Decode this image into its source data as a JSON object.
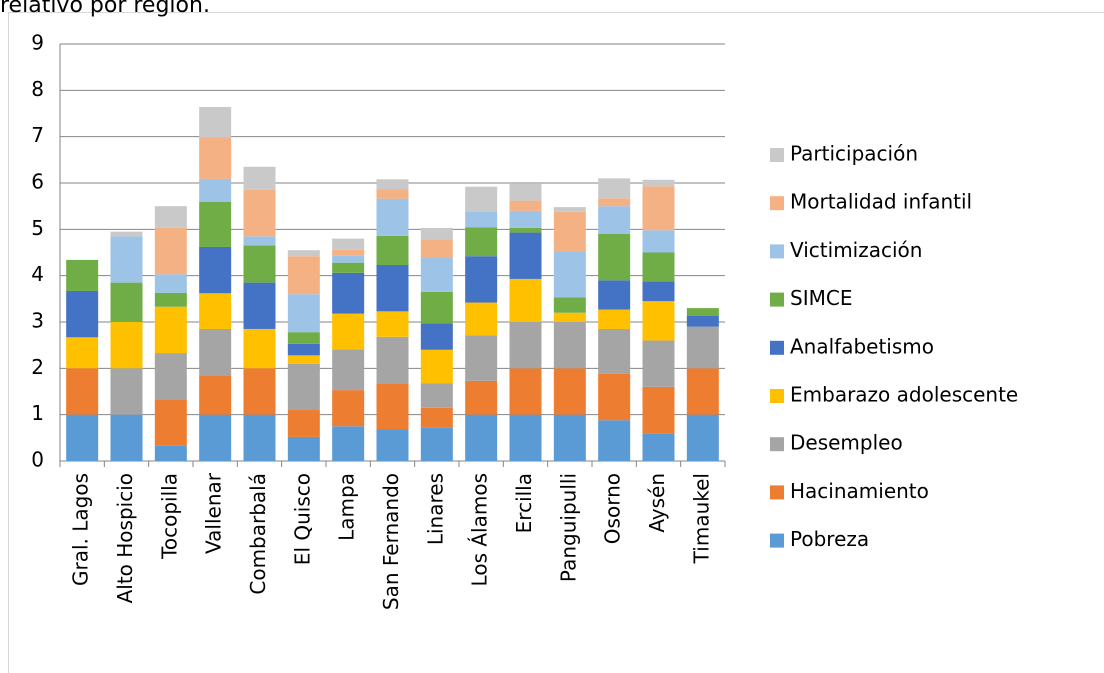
{
  "chart_data": {
    "type": "stacked_bar",
    "title": "relativo por región.",
    "categories": [
      "Gral. Lagos",
      "Alto Hospicio",
      "Tocopilla",
      "Vallenar",
      "Combarbalá",
      "El Quisco",
      "Lampa",
      "San Fernando",
      "Linares",
      "Los Álamos",
      "Ercilla",
      "Panguipulli",
      "Osorno",
      "Aysén",
      "Timaukel"
    ],
    "series": [
      {
        "name": "Pobreza",
        "color": "#5b9bd5",
        "values": [
          1,
          1,
          0.33,
          1,
          1,
          0.52,
          0.75,
          0.68,
          0.72,
          1,
          1,
          1,
          0.88,
          0.6,
          1
        ]
      },
      {
        "name": "Hacinamiento",
        "color": "#ed7d31",
        "values": [
          1,
          0,
          1,
          0.85,
          1,
          0.58,
          0.78,
          1,
          0.43,
          0.73,
          1,
          1,
          1,
          1,
          1
        ]
      },
      {
        "name": "Desempleo",
        "color": "#a5a5a5",
        "values": [
          0,
          1,
          1,
          1,
          0,
          1,
          0.88,
          1,
          0.53,
          0.98,
          1,
          1,
          0.97,
          1,
          0.9
        ]
      },
      {
        "name": "Embarazo adolescente",
        "color": "#ffc000",
        "values": [
          0.67,
          1,
          1,
          0.77,
          0.85,
          0.18,
          0.77,
          0.55,
          0.72,
          0.71,
          0.93,
          0.2,
          0.42,
          0.85,
          0
        ]
      },
      {
        "name": "Analfabetismo",
        "color": "#4472c4",
        "values": [
          1,
          0,
          0,
          1,
          1,
          0.25,
          0.88,
          1,
          0.57,
          1,
          1,
          0,
          0.63,
          0.43,
          0.23
        ]
      },
      {
        "name": "SIMCE",
        "color": "#70ad47",
        "values": [
          0.67,
          0.85,
          0.3,
          0.97,
          0.8,
          0.25,
          0.22,
          0.63,
          0.68,
          0.62,
          0.1,
          0.33,
          1,
          0.62,
          0.17
        ]
      },
      {
        "name": "Victimización",
        "color": "#9dc3e6",
        "values": [
          0,
          1,
          0.4,
          0.5,
          0.2,
          0.82,
          0.15,
          0.8,
          0.75,
          0.35,
          0.37,
          1,
          0.6,
          0.48,
          0
        ]
      },
      {
        "name": "Mortalidad infantil",
        "color": "#f4b183",
        "values": [
          0,
          0,
          1,
          0.9,
          1,
          0.82,
          0.13,
          0.2,
          0.37,
          0,
          0.22,
          0.85,
          0.17,
          0.95,
          0
        ]
      },
      {
        "name": "Participación",
        "color": "#c9c9c9",
        "values": [
          0,
          0.1,
          0.47,
          0.65,
          0.5,
          0.13,
          0.24,
          0.22,
          0.26,
          0.53,
          0.36,
          0.1,
          0.43,
          0.14,
          0
        ]
      }
    ],
    "ylim": [
      0,
      9
    ],
    "yticks": [
      0,
      1,
      2,
      3,
      4,
      5,
      6,
      7,
      8,
      9
    ],
    "grid": true
  }
}
